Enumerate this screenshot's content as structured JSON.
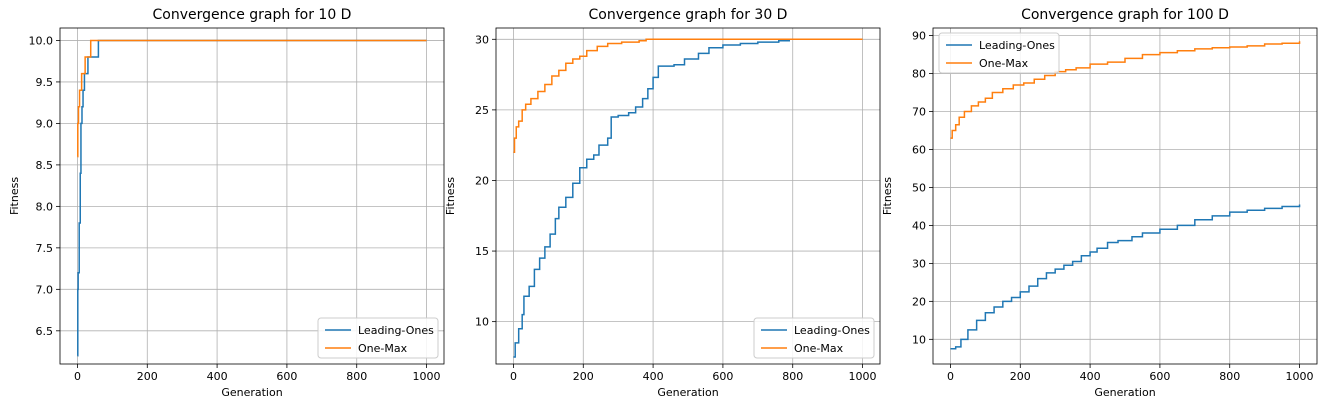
{
  "chart_data": [
    {
      "type": "line",
      "title": "Convergence graph for 10 D",
      "xlabel": "Generation",
      "ylabel": "Fitness",
      "xlim": [
        -50,
        1050
      ],
      "ylim": [
        6.1,
        10.15
      ],
      "xticks": [
        0,
        200,
        400,
        600,
        800,
        1000
      ],
      "yticks": [
        6.5,
        7.0,
        7.5,
        8.0,
        8.5,
        9.0,
        9.5,
        10.0
      ],
      "ytick_labels": [
        "6.5",
        "7.0",
        "7.5",
        "8.0",
        "8.5",
        "9.0",
        "9.5",
        "10.0"
      ],
      "grid": true,
      "legend_position": "lower right",
      "series": [
        {
          "name": "Leading-Ones",
          "color": "#1f77b4",
          "points": [
            [
              0,
              6.2
            ],
            [
              1,
              7.0
            ],
            [
              2,
              7.2
            ],
            [
              5,
              7.8
            ],
            [
              8,
              8.4
            ],
            [
              10,
              9.0
            ],
            [
              13,
              9.2
            ],
            [
              16,
              9.4
            ],
            [
              20,
              9.6
            ],
            [
              28,
              9.6
            ],
            [
              30,
              9.8
            ],
            [
              58,
              9.8
            ],
            [
              60,
              10.0
            ],
            [
              1000,
              10.0
            ]
          ]
        },
        {
          "name": "One-Max",
          "color": "#ff7f0e",
          "points": [
            [
              0,
              8.6
            ],
            [
              1,
              9.0
            ],
            [
              3,
              9.2
            ],
            [
              6,
              9.4
            ],
            [
              12,
              9.6
            ],
            [
              20,
              9.6
            ],
            [
              22,
              9.8
            ],
            [
              36,
              9.8
            ],
            [
              38,
              10.0
            ],
            [
              1000,
              10.0
            ]
          ]
        }
      ]
    },
    {
      "type": "line",
      "title": "Convergence graph for 30 D",
      "xlabel": "Generation",
      "ylabel": "Fitness",
      "xlim": [
        -50,
        1050
      ],
      "ylim": [
        7.0,
        30.8
      ],
      "xticks": [
        0,
        200,
        400,
        600,
        800,
        1000
      ],
      "yticks": [
        10,
        15,
        20,
        25,
        30
      ],
      "ytick_labels": [
        "10",
        "15",
        "20",
        "25",
        "30"
      ],
      "grid": true,
      "legend_position": "lower right",
      "series": [
        {
          "name": "Leading-Ones",
          "color": "#1f77b4",
          "points": [
            [
              0,
              7.5
            ],
            [
              5,
              8.5
            ],
            [
              15,
              9.5
            ],
            [
              25,
              10.5
            ],
            [
              30,
              11.8
            ],
            [
              45,
              12.5
            ],
            [
              60,
              13.7
            ],
            [
              75,
              14.5
            ],
            [
              90,
              15.3
            ],
            [
              105,
              16.2
            ],
            [
              120,
              17.3
            ],
            [
              130,
              18.1
            ],
            [
              150,
              18.8
            ],
            [
              170,
              19.8
            ],
            [
              190,
              20.9
            ],
            [
              210,
              21.5
            ],
            [
              230,
              21.8
            ],
            [
              245,
              22.5
            ],
            [
              270,
              23.0
            ],
            [
              280,
              24.5
            ],
            [
              300,
              24.6
            ],
            [
              330,
              24.8
            ],
            [
              350,
              25.2
            ],
            [
              370,
              25.8
            ],
            [
              385,
              26.5
            ],
            [
              400,
              27.3
            ],
            [
              415,
              28.1
            ],
            [
              460,
              28.2
            ],
            [
              490,
              28.6
            ],
            [
              530,
              29.0
            ],
            [
              560,
              29.4
            ],
            [
              600,
              29.6
            ],
            [
              650,
              29.7
            ],
            [
              700,
              29.8
            ],
            [
              760,
              29.9
            ],
            [
              790,
              30.0
            ],
            [
              1000,
              30.0
            ]
          ]
        },
        {
          "name": "One-Max",
          "color": "#ff7f0e",
          "points": [
            [
              0,
              22.0
            ],
            [
              3,
              23.0
            ],
            [
              8,
              23.8
            ],
            [
              15,
              24.2
            ],
            [
              25,
              25.0
            ],
            [
              35,
              25.4
            ],
            [
              50,
              25.8
            ],
            [
              70,
              26.3
            ],
            [
              90,
              26.8
            ],
            [
              110,
              27.4
            ],
            [
              130,
              27.8
            ],
            [
              150,
              28.3
            ],
            [
              170,
              28.6
            ],
            [
              190,
              28.8
            ],
            [
              210,
              29.2
            ],
            [
              240,
              29.5
            ],
            [
              270,
              29.7
            ],
            [
              310,
              29.8
            ],
            [
              360,
              29.9
            ],
            [
              380,
              30.0
            ],
            [
              1000,
              30.0
            ]
          ]
        }
      ]
    },
    {
      "type": "line",
      "title": "Convergence graph for 100 D",
      "xlabel": "Generation",
      "ylabel": "Fitness",
      "xlim": [
        -50,
        1050
      ],
      "ylim": [
        3.5,
        92.0
      ],
      "xticks": [
        0,
        200,
        400,
        600,
        800,
        1000
      ],
      "yticks": [
        10,
        20,
        30,
        40,
        50,
        60,
        70,
        80,
        90
      ],
      "ytick_labels": [
        "10",
        "20",
        "30",
        "40",
        "50",
        "60",
        "70",
        "80",
        "90"
      ],
      "grid": true,
      "legend_position": "upper left",
      "series": [
        {
          "name": "Leading-Ones",
          "color": "#1f77b4",
          "points": [
            [
              0,
              7.5
            ],
            [
              15,
              8.0
            ],
            [
              30,
              10.0
            ],
            [
              50,
              12.5
            ],
            [
              75,
              15.0
            ],
            [
              100,
              17.0
            ],
            [
              125,
              18.5
            ],
            [
              150,
              20.0
            ],
            [
              175,
              21.0
            ],
            [
              200,
              22.5
            ],
            [
              225,
              24.0
            ],
            [
              250,
              26.0
            ],
            [
              275,
              27.5
            ],
            [
              300,
              28.5
            ],
            [
              325,
              29.5
            ],
            [
              350,
              30.5
            ],
            [
              375,
              32.0
            ],
            [
              400,
              33.0
            ],
            [
              420,
              34.0
            ],
            [
              450,
              35.5
            ],
            [
              480,
              36.0
            ],
            [
              520,
              37.0
            ],
            [
              550,
              38.0
            ],
            [
              600,
              39.0
            ],
            [
              650,
              40.0
            ],
            [
              700,
              41.5
            ],
            [
              750,
              42.5
            ],
            [
              800,
              43.5
            ],
            [
              850,
              44.0
            ],
            [
              900,
              44.5
            ],
            [
              950,
              45.0
            ],
            [
              1000,
              45.5
            ]
          ]
        },
        {
          "name": "One-Max",
          "color": "#ff7f0e",
          "points": [
            [
              0,
              63.0
            ],
            [
              5,
              65.0
            ],
            [
              15,
              66.5
            ],
            [
              25,
              68.5
            ],
            [
              40,
              70.0
            ],
            [
              60,
              71.5
            ],
            [
              80,
              72.5
            ],
            [
              100,
              73.5
            ],
            [
              120,
              75.0
            ],
            [
              150,
              76.0
            ],
            [
              180,
              77.0
            ],
            [
              210,
              77.5
            ],
            [
              240,
              78.5
            ],
            [
              270,
              79.5
            ],
            [
              300,
              80.5
            ],
            [
              330,
              81.0
            ],
            [
              360,
              81.5
            ],
            [
              400,
              82.5
            ],
            [
              450,
              83.0
            ],
            [
              500,
              84.0
            ],
            [
              550,
              85.0
            ],
            [
              600,
              85.5
            ],
            [
              650,
              86.0
            ],
            [
              700,
              86.5
            ],
            [
              750,
              86.8
            ],
            [
              800,
              87.0
            ],
            [
              850,
              87.3
            ],
            [
              900,
              87.8
            ],
            [
              950,
              88.0
            ],
            [
              1000,
              88.5
            ]
          ]
        }
      ]
    }
  ]
}
